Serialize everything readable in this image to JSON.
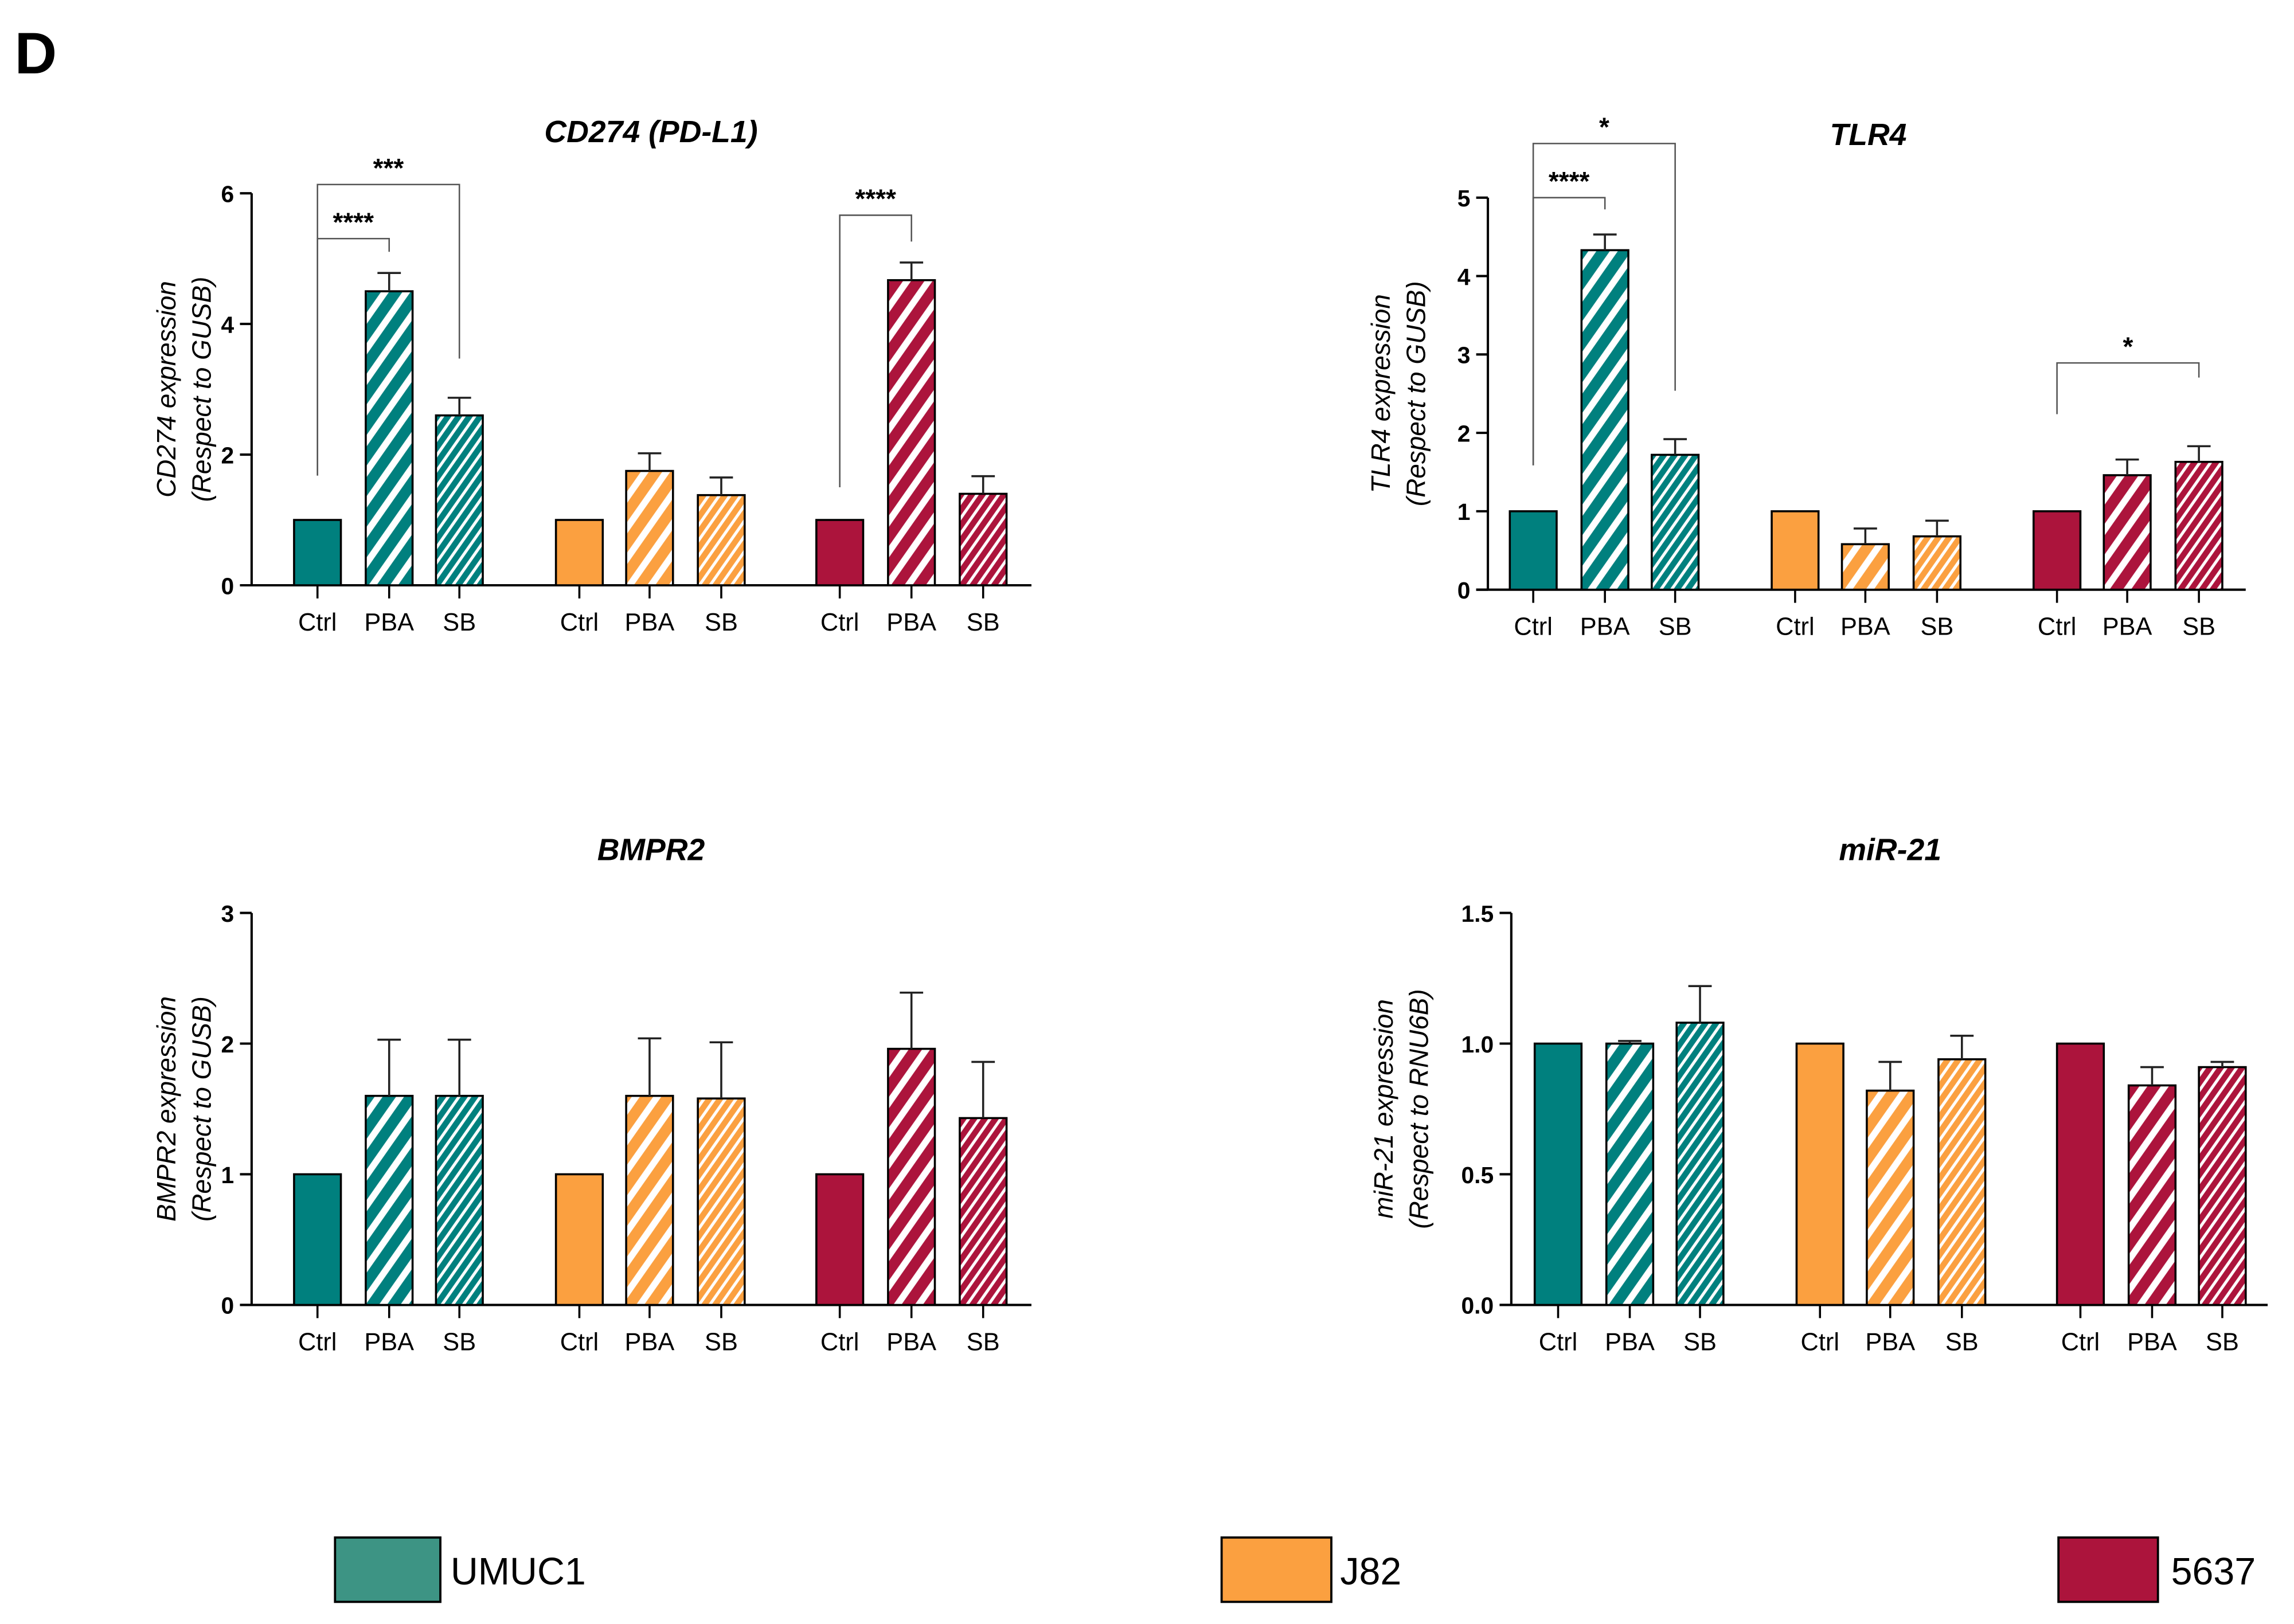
{
  "panel_label": "D",
  "legend": [
    {
      "label": "UMUC1",
      "color": "#3D9484"
    },
    {
      "label": "J82",
      "color": "#FBA040"
    },
    {
      "label": "5637",
      "color": "#AC143C"
    }
  ],
  "colors": {
    "UMUC1": "#00807E",
    "J82": "#FBA040",
    "5637": "#AC143C"
  },
  "chart_data": [
    {
      "type": "bar",
      "title": "CD274 (PD-L1)",
      "ylabel_line1": "CD274 expression",
      "ylabel_line2": "(Respect to GUSB)",
      "ylim": [
        0,
        6
      ],
      "yticks": [
        "0",
        "2",
        "4",
        "6"
      ],
      "ytick_values": [
        0,
        2,
        4,
        6
      ],
      "groups": [
        "UMUC1",
        "J82",
        "5637"
      ],
      "categories": [
        "Ctrl",
        "PBA",
        "SB"
      ],
      "series": [
        {
          "name": "UMUC1",
          "values": [
            1,
            4.5,
            2.6
          ],
          "errors": [
            0,
            0.28,
            0.27
          ]
        },
        {
          "name": "J82",
          "values": [
            1,
            1.75,
            1.38
          ],
          "errors": [
            0,
            0.27,
            0.27
          ]
        },
        {
          "name": "5637",
          "values": [
            1,
            4.67,
            1.4
          ],
          "errors": [
            0,
            0.27,
            0.27
          ]
        }
      ],
      "significance": [
        {
          "group": "UMUC1",
          "from": "Ctrl",
          "to": "PBA",
          "label": "****"
        },
        {
          "group": "UMUC1",
          "from": "Ctrl",
          "to": "SB",
          "label": "***"
        },
        {
          "group": "5637",
          "from": "Ctrl",
          "to": "PBA",
          "label": "****"
        }
      ]
    },
    {
      "type": "bar",
      "title": "TLR4",
      "ylabel_line1": "TLR4 expression",
      "ylabel_line2": "(Respect to GUSB)",
      "ylim": [
        0,
        5
      ],
      "yticks": [
        "0",
        "1",
        "2",
        "3",
        "4",
        "5"
      ],
      "ytick_values": [
        0,
        1,
        2,
        3,
        4,
        5
      ],
      "groups": [
        "UMUC1",
        "J82",
        "5637"
      ],
      "categories": [
        "Ctrl",
        "PBA",
        "SB"
      ],
      "series": [
        {
          "name": "UMUC1",
          "values": [
            1,
            4.33,
            1.72
          ],
          "errors": [
            0,
            0.2,
            0.2
          ]
        },
        {
          "name": "J82",
          "values": [
            1,
            0.58,
            0.68
          ],
          "errors": [
            0,
            0.2,
            0.2
          ]
        },
        {
          "name": "5637",
          "values": [
            1,
            1.46,
            1.63
          ],
          "errors": [
            0,
            0.2,
            0.2
          ]
        }
      ],
      "significance": [
        {
          "group": "UMUC1",
          "from": "Ctrl",
          "to": "PBA",
          "label": "****"
        },
        {
          "group": "UMUC1",
          "from": "Ctrl",
          "to": "SB",
          "label": "*"
        },
        {
          "group": "5637",
          "from": "Ctrl",
          "to": "SB",
          "label": "*"
        }
      ]
    },
    {
      "type": "bar",
      "title": "BMPR2",
      "ylabel_line1": "BMPR2 expression",
      "ylabel_line2": "(Respect to GUSB)",
      "ylim": [
        0,
        3
      ],
      "yticks": [
        "0",
        "1",
        "2",
        "3"
      ],
      "ytick_values": [
        0,
        1,
        2,
        3
      ],
      "groups": [
        "UMUC1",
        "J82",
        "5637"
      ],
      "categories": [
        "Ctrl",
        "PBA",
        "SB"
      ],
      "series": [
        {
          "name": "UMUC1",
          "values": [
            1,
            1.6,
            1.6
          ],
          "errors": [
            0,
            0.43,
            0.43
          ]
        },
        {
          "name": "J82",
          "values": [
            1,
            1.6,
            1.58
          ],
          "errors": [
            0,
            0.44,
            0.43
          ]
        },
        {
          "name": "5637",
          "values": [
            1,
            1.96,
            1.43
          ],
          "errors": [
            0,
            0.43,
            0.43
          ]
        }
      ],
      "significance": []
    },
    {
      "type": "bar",
      "title": "miR-21",
      "ylabel_line1": "miR-21 expression",
      "ylabel_line2": "(Respect to RNU6B)",
      "ylim": [
        0,
        1.5
      ],
      "yticks": [
        "0.0",
        "0.5",
        "1.0",
        "1.5"
      ],
      "ytick_values": [
        0,
        0.5,
        1.0,
        1.5
      ],
      "groups": [
        "UMUC1",
        "J82",
        "5637"
      ],
      "categories": [
        "Ctrl",
        "PBA",
        "SB"
      ],
      "series": [
        {
          "name": "UMUC1",
          "values": [
            1,
            1.0,
            1.08
          ],
          "errors": [
            0,
            0.01,
            0.14
          ]
        },
        {
          "name": "J82",
          "values": [
            1,
            0.82,
            0.94
          ],
          "errors": [
            0,
            0.11,
            0.09
          ]
        },
        {
          "name": "5637",
          "values": [
            1,
            0.84,
            0.91
          ],
          "errors": [
            0,
            0.07,
            0.02
          ]
        }
      ],
      "significance": []
    }
  ]
}
